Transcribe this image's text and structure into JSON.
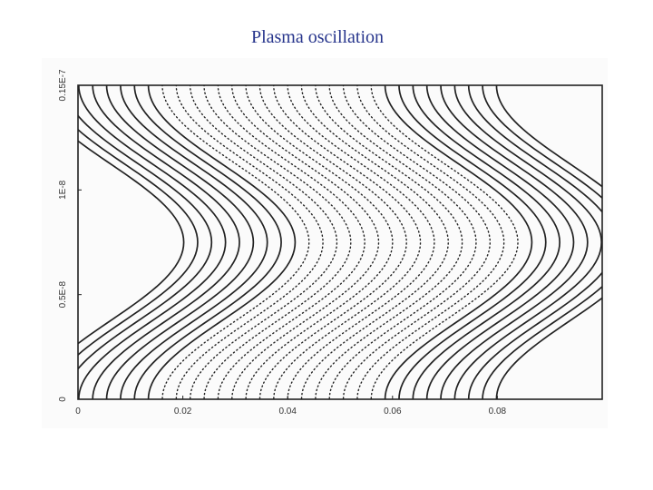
{
  "slide": {
    "title": "Plasma oscillation"
  },
  "figure": {
    "description_color": "#222222",
    "x_axis": {
      "range": [
        0,
        0.1
      ],
      "ticks": [
        {
          "value": 0,
          "label": "0"
        },
        {
          "value": 0.02,
          "label": "0.02"
        },
        {
          "value": 0.04,
          "label": "0.04"
        },
        {
          "value": 0.06,
          "label": "0.06"
        },
        {
          "value": 0.08,
          "label": "0.08"
        }
      ]
    },
    "y_axis": {
      "range": [
        0,
        1.5e-08
      ],
      "ticks": [
        {
          "value": 0,
          "label": "0"
        },
        {
          "value": 5e-09,
          "label": "0.5E-8"
        },
        {
          "value": 1e-08,
          "label": "1E-8"
        },
        {
          "value": 1.5e-08,
          "label": "0.15E-7"
        }
      ]
    },
    "contours": {
      "solid_count": 18,
      "dotted_count": 16,
      "amplitude_fraction": 0.14,
      "period_fraction": 0.5
    }
  }
}
